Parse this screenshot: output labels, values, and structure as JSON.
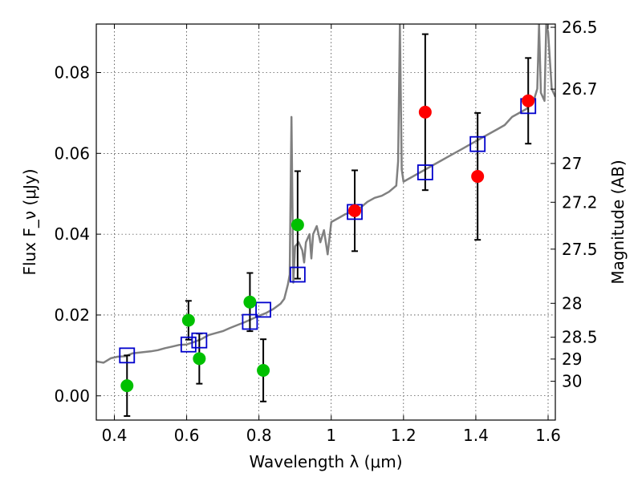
{
  "chart_data": {
    "type": "scatter",
    "xlabel": "Wavelength λ (μm)",
    "ylabel": "Flux F_ν (μJy)",
    "y2label": "Magnitude (AB)",
    "xlim": [
      0.35,
      1.62
    ],
    "ylim": [
      -0.006,
      0.092
    ],
    "xticks": [
      0.4,
      0.6,
      0.8,
      1.0,
      1.2,
      1.4,
      1.6
    ],
    "xtick_labels": [
      "0.4",
      "0.6",
      "0.8",
      "1",
      "1.2",
      "1.4",
      "1.6"
    ],
    "yticks": [
      0.0,
      0.02,
      0.04,
      0.06,
      0.08
    ],
    "ytick_labels": [
      "0.00",
      "0.02",
      "0.04",
      "0.06",
      "0.08"
    ],
    "mag_ticks": [
      {
        "flux": 0.0912,
        "label": "26.5"
      },
      {
        "flux": 0.0759,
        "label": "26.7"
      },
      {
        "flux": 0.0575,
        "label": "27"
      },
      {
        "flux": 0.0479,
        "label": "27.2"
      },
      {
        "flux": 0.0363,
        "label": "27.5"
      },
      {
        "flux": 0.0229,
        "label": "28"
      },
      {
        "flux": 0.0145,
        "label": "28.5"
      },
      {
        "flux": 0.0091,
        "label": "29"
      },
      {
        "flux": 0.0036,
        "label": "30"
      }
    ],
    "grid": true,
    "colors": {
      "model": "#808080",
      "optical_points": "#00c000",
      "ir_points": "#ff0000",
      "model_bands": "#0000cc",
      "errorbars": "#000000"
    },
    "series": [
      {
        "type": "line",
        "points": [
          [
            0.35,
            0.0085
          ],
          [
            0.37,
            0.0082
          ],
          [
            0.39,
            0.0093
          ],
          [
            0.41,
            0.0097
          ],
          [
            0.43,
            0.0098
          ],
          [
            0.45,
            0.0105
          ],
          [
            0.48,
            0.0108
          ],
          [
            0.5,
            0.011
          ],
          [
            0.52,
            0.0113
          ],
          [
            0.54,
            0.0118
          ],
          [
            0.56,
            0.0122
          ],
          [
            0.58,
            0.0126
          ],
          [
            0.6,
            0.0127
          ],
          [
            0.62,
            0.0133
          ],
          [
            0.64,
            0.014
          ],
          [
            0.66,
            0.015
          ],
          [
            0.68,
            0.0155
          ],
          [
            0.7,
            0.016
          ],
          [
            0.72,
            0.0168
          ],
          [
            0.74,
            0.0175
          ],
          [
            0.76,
            0.0182
          ],
          [
            0.78,
            0.019
          ],
          [
            0.8,
            0.0198
          ],
          [
            0.82,
            0.0205
          ],
          [
            0.84,
            0.0215
          ],
          [
            0.86,
            0.0228
          ],
          [
            0.87,
            0.024
          ],
          [
            0.88,
            0.0275
          ],
          [
            0.885,
            0.03
          ],
          [
            0.89,
            0.069
          ],
          [
            0.895,
            0.028
          ],
          [
            0.9,
            0.037
          ],
          [
            0.91,
            0.038
          ],
          [
            0.92,
            0.036
          ],
          [
            0.925,
            0.033
          ],
          [
            0.93,
            0.038
          ],
          [
            0.94,
            0.04
          ],
          [
            0.945,
            0.034
          ],
          [
            0.95,
            0.04
          ],
          [
            0.96,
            0.042
          ],
          [
            0.97,
            0.038
          ],
          [
            0.98,
            0.041
          ],
          [
            0.99,
            0.035
          ],
          [
            1.0,
            0.043
          ],
          [
            1.02,
            0.044
          ],
          [
            1.04,
            0.045
          ],
          [
            1.06,
            0.0455
          ],
          [
            1.08,
            0.0465
          ],
          [
            1.1,
            0.048
          ],
          [
            1.12,
            0.049
          ],
          [
            1.14,
            0.0495
          ],
          [
            1.16,
            0.0505
          ],
          [
            1.18,
            0.052
          ],
          [
            1.185,
            0.058
          ],
          [
            1.19,
            0.092
          ],
          [
            1.195,
            0.056
          ],
          [
            1.2,
            0.053
          ],
          [
            1.22,
            0.054
          ],
          [
            1.24,
            0.055
          ],
          [
            1.26,
            0.056
          ],
          [
            1.28,
            0.057
          ],
          [
            1.3,
            0.058
          ],
          [
            1.32,
            0.059
          ],
          [
            1.34,
            0.06
          ],
          [
            1.36,
            0.061
          ],
          [
            1.38,
            0.062
          ],
          [
            1.4,
            0.063
          ],
          [
            1.42,
            0.064
          ],
          [
            1.44,
            0.065
          ],
          [
            1.46,
            0.066
          ],
          [
            1.48,
            0.067
          ],
          [
            1.5,
            0.069
          ],
          [
            1.52,
            0.07
          ],
          [
            1.54,
            0.071
          ],
          [
            1.56,
            0.073
          ],
          [
            1.57,
            0.076
          ],
          [
            1.575,
            0.092
          ],
          [
            1.58,
            0.075
          ],
          [
            1.59,
            0.073
          ],
          [
            1.595,
            0.092
          ],
          [
            1.6,
            0.09
          ],
          [
            1.61,
            0.076
          ],
          [
            1.62,
            0.074
          ]
        ]
      },
      {
        "type": "scatter",
        "marker": "circle",
        "points": [
          {
            "x": 0.435,
            "y": 0.0025,
            "err": 0.0075
          },
          {
            "x": 0.605,
            "y": 0.0187,
            "err": 0.0048
          },
          {
            "x": 0.635,
            "y": 0.0092,
            "err": 0.0062
          },
          {
            "x": 0.775,
            "y": 0.0232,
            "err": 0.0072
          },
          {
            "x": 0.812,
            "y": 0.0063,
            "err": 0.0077
          },
          {
            "x": 0.907,
            "y": 0.0423,
            "err": 0.0133
          }
        ]
      },
      {
        "type": "scatter",
        "marker": "circle",
        "points": [
          {
            "x": 1.065,
            "y": 0.0458,
            "err": 0.01
          },
          {
            "x": 1.26,
            "y": 0.0702,
            "err": 0.0193
          },
          {
            "x": 1.405,
            "y": 0.0543,
            "err": 0.0157
          },
          {
            "x": 1.545,
            "y": 0.073,
            "err": 0.0106
          }
        ]
      },
      {
        "type": "scatter",
        "marker": "square",
        "points": [
          {
            "x": 0.435,
            "y": 0.01
          },
          {
            "x": 0.605,
            "y": 0.0127
          },
          {
            "x": 0.635,
            "y": 0.0137
          },
          {
            "x": 0.775,
            "y": 0.0183
          },
          {
            "x": 0.812,
            "y": 0.0213
          },
          {
            "x": 0.907,
            "y": 0.03
          },
          {
            "x": 1.065,
            "y": 0.0455
          },
          {
            "x": 1.26,
            "y": 0.0553
          },
          {
            "x": 1.405,
            "y": 0.0623
          },
          {
            "x": 1.545,
            "y": 0.0717
          }
        ]
      }
    ]
  }
}
